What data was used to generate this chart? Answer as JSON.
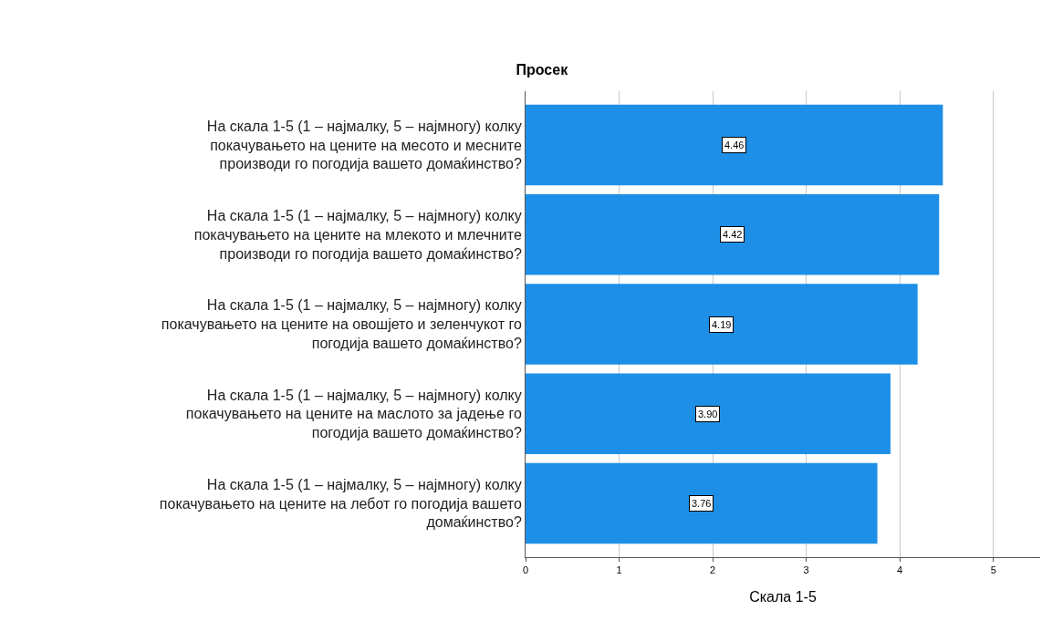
{
  "chart_data": {
    "type": "bar",
    "orientation": "horizontal",
    "title": "Просек",
    "xlabel": "Скала 1-5",
    "categories": [
      "На скала 1-5 (1 – најмалку, 5 – најмногу) колку покачувањето на цените на месото и месните производи го погодија вашето домаќинство?",
      "На скала 1-5 (1 – најмалку, 5 – најмногу) колку покачувањето на цените на млекото и млечните производи го погодија вашето домаќинство?",
      "На скала 1-5 (1 – најмалку, 5 – најмногу) колку покачувањето на цените на овошјето и зеленчукот го погодија вашето домаќинство?",
      "На скала 1-5 (1 – најмалку, 5 – најмногу) колку покачувањето на цените на маслото за јадење го погодија вашето домаќинство?",
      "На скала 1-5 (1 – најмалку, 5 – најмногу) колку покачувањето на цените на лебот го погодија вашето домаќинство?"
    ],
    "values": [
      4.46,
      4.42,
      4.19,
      3.9,
      3.76
    ],
    "value_labels": [
      "4.46",
      "4.42",
      "4.19",
      "3.90",
      "3.76"
    ],
    "color": "#1e8fe6",
    "xlim": [
      0,
      5.5
    ],
    "xticks": [
      0,
      1,
      2,
      3,
      4,
      5
    ],
    "grid": "x"
  }
}
